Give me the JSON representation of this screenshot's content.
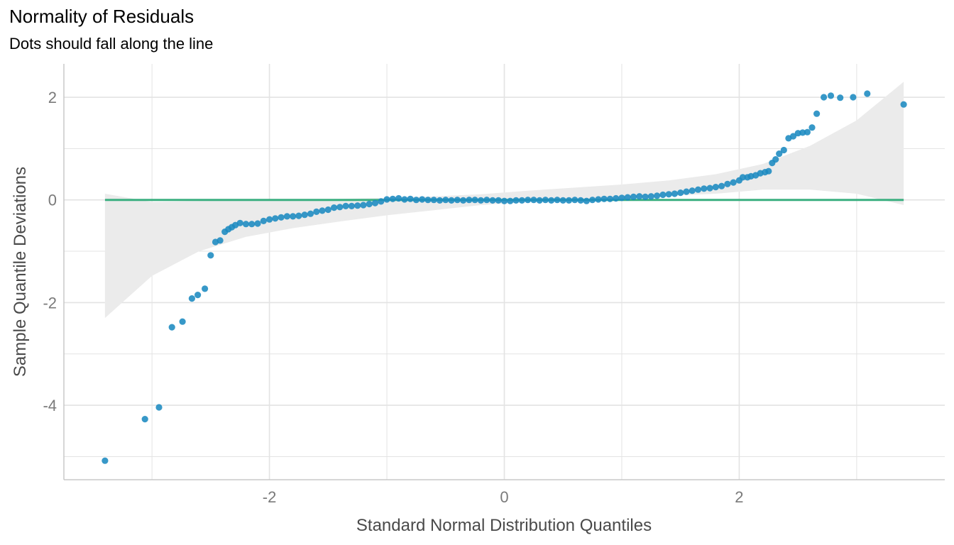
{
  "chart_data": {
    "type": "scatter",
    "title": "Normality of Residuals",
    "subtitle": "Dots should fall along the line",
    "xlabel": "Standard Normal Distribution Quantiles",
    "ylabel": "Sample Quantile Deviations",
    "xlim": [
      -3.75,
      3.75
    ],
    "ylim": [
      -5.45,
      2.65
    ],
    "xticks": [
      -2,
      0,
      2
    ],
    "xtick_labels": [
      "-2",
      "0",
      "2"
    ],
    "xminor": [
      -3,
      -1,
      1,
      3
    ],
    "yticks": [
      -4,
      -2,
      0,
      2
    ],
    "ytick_labels": [
      "-4",
      "-2",
      "0",
      "2"
    ],
    "yminor": [
      -5,
      -3,
      -1,
      1
    ],
    "grid": true,
    "reference_line": {
      "y": 0,
      "x_from": -3.4,
      "x_to": 3.4
    },
    "confidence_band": {
      "x": [
        -3.4,
        -3.0,
        -2.6,
        -2.2,
        -1.8,
        -1.4,
        -1.0,
        -0.6,
        -0.2,
        0.2,
        0.6,
        1.0,
        1.4,
        1.8,
        2.2,
        2.6,
        3.0,
        3.4
      ],
      "lower": [
        -2.3,
        -1.48,
        -1.0,
        -0.72,
        -0.55,
        -0.42,
        -0.3,
        -0.2,
        -0.1,
        -0.04,
        0.0,
        0.03,
        0.08,
        0.12,
        0.2,
        0.2,
        0.12,
        -0.1
      ],
      "upper": [
        0.12,
        -0.04,
        -0.02,
        -0.01,
        0.0,
        0.02,
        0.04,
        0.07,
        0.11,
        0.18,
        0.24,
        0.3,
        0.38,
        0.5,
        0.7,
        1.05,
        1.55,
        2.3
      ]
    },
    "series": [
      {
        "points": [
          [
            -3.4,
            -5.08
          ],
          [
            -3.06,
            -4.27
          ],
          [
            -2.94,
            -4.04
          ],
          [
            -2.83,
            -2.48
          ],
          [
            -2.74,
            -2.37
          ],
          [
            -2.66,
            -1.92
          ],
          [
            -2.61,
            -1.85
          ],
          [
            -2.55,
            -1.73
          ],
          [
            -2.5,
            -1.08
          ],
          [
            -2.46,
            -0.82
          ],
          [
            -2.42,
            -0.79
          ],
          [
            -2.38,
            -0.62
          ],
          [
            -2.35,
            -0.57
          ],
          [
            -2.32,
            -0.53
          ],
          [
            -2.29,
            -0.49
          ],
          [
            -2.25,
            -0.45
          ],
          [
            -2.2,
            -0.47
          ],
          [
            -2.15,
            -0.47
          ],
          [
            -2.1,
            -0.46
          ],
          [
            -2.05,
            -0.41
          ],
          [
            -2.0,
            -0.38
          ],
          [
            -1.95,
            -0.36
          ],
          [
            -1.9,
            -0.34
          ],
          [
            -1.85,
            -0.32
          ],
          [
            -1.8,
            -0.32
          ],
          [
            -1.75,
            -0.31
          ],
          [
            -1.7,
            -0.29
          ],
          [
            -1.65,
            -0.27
          ],
          [
            -1.6,
            -0.23
          ],
          [
            -1.55,
            -0.21
          ],
          [
            -1.5,
            -0.19
          ],
          [
            -1.45,
            -0.15
          ],
          [
            -1.4,
            -0.14
          ],
          [
            -1.35,
            -0.12
          ],
          [
            -1.3,
            -0.12
          ],
          [
            -1.25,
            -0.11
          ],
          [
            -1.2,
            -0.1
          ],
          [
            -1.15,
            -0.08
          ],
          [
            -1.1,
            -0.06
          ],
          [
            -1.05,
            -0.03
          ],
          [
            -1.0,
            0.01
          ],
          [
            -0.95,
            0.02
          ],
          [
            -0.9,
            0.03
          ],
          [
            -0.85,
            0.01
          ],
          [
            -0.8,
            0.02
          ],
          [
            -0.75,
            0.0
          ],
          [
            -0.7,
            0.01
          ],
          [
            -0.65,
            0.0
          ],
          [
            -0.6,
            0.0
          ],
          [
            -0.55,
            -0.01
          ],
          [
            -0.5,
            0.0
          ],
          [
            -0.45,
            -0.01
          ],
          [
            -0.4,
            0.0
          ],
          [
            -0.35,
            -0.01
          ],
          [
            -0.3,
            0.0
          ],
          [
            -0.25,
            0.0
          ],
          [
            -0.2,
            -0.01
          ],
          [
            -0.15,
            0.0
          ],
          [
            -0.1,
            -0.01
          ],
          [
            -0.05,
            -0.01
          ],
          [
            0.0,
            -0.02
          ],
          [
            0.05,
            -0.02
          ],
          [
            0.1,
            -0.01
          ],
          [
            0.15,
            -0.01
          ],
          [
            0.2,
            0.0
          ],
          [
            0.25,
            0.0
          ],
          [
            0.3,
            -0.01
          ],
          [
            0.35,
            0.0
          ],
          [
            0.4,
            -0.01
          ],
          [
            0.45,
            0.0
          ],
          [
            0.5,
            -0.01
          ],
          [
            0.55,
            -0.01
          ],
          [
            0.6,
            0.0
          ],
          [
            0.65,
            -0.01
          ],
          [
            0.7,
            -0.02
          ],
          [
            0.75,
            0.0
          ],
          [
            0.8,
            0.01
          ],
          [
            0.85,
            0.02
          ],
          [
            0.9,
            0.02
          ],
          [
            0.95,
            0.03
          ],
          [
            1.0,
            0.04
          ],
          [
            1.05,
            0.05
          ],
          [
            1.1,
            0.06
          ],
          [
            1.15,
            0.07
          ],
          [
            1.2,
            0.06
          ],
          [
            1.25,
            0.07
          ],
          [
            1.3,
            0.08
          ],
          [
            1.35,
            0.1
          ],
          [
            1.4,
            0.11
          ],
          [
            1.45,
            0.12
          ],
          [
            1.5,
            0.14
          ],
          [
            1.55,
            0.16
          ],
          [
            1.6,
            0.18
          ],
          [
            1.65,
            0.2
          ],
          [
            1.7,
            0.22
          ],
          [
            1.75,
            0.23
          ],
          [
            1.8,
            0.25
          ],
          [
            1.85,
            0.27
          ],
          [
            1.9,
            0.31
          ],
          [
            1.95,
            0.34
          ],
          [
            2.0,
            0.38
          ],
          [
            2.03,
            0.44
          ],
          [
            2.07,
            0.44
          ],
          [
            2.1,
            0.46
          ],
          [
            2.14,
            0.48
          ],
          [
            2.18,
            0.52
          ],
          [
            2.22,
            0.54
          ],
          [
            2.25,
            0.56
          ],
          [
            2.28,
            0.72
          ],
          [
            2.31,
            0.79
          ],
          [
            2.34,
            0.9
          ],
          [
            2.38,
            0.97
          ],
          [
            2.42,
            1.2
          ],
          [
            2.46,
            1.24
          ],
          [
            2.5,
            1.3
          ],
          [
            2.54,
            1.31
          ],
          [
            2.58,
            1.32
          ],
          [
            2.62,
            1.41
          ],
          [
            2.66,
            1.68
          ],
          [
            2.72,
            2.0
          ],
          [
            2.78,
            2.03
          ],
          [
            2.86,
            1.99
          ],
          [
            2.97,
            2.0
          ],
          [
            3.09,
            2.07
          ],
          [
            3.4,
            1.86
          ]
        ]
      }
    ]
  },
  "colors": {
    "points": "#1b8ac0",
    "reference_line": "#3aaf80",
    "band": "#ebebeb",
    "grid": "#e3e3e3"
  }
}
